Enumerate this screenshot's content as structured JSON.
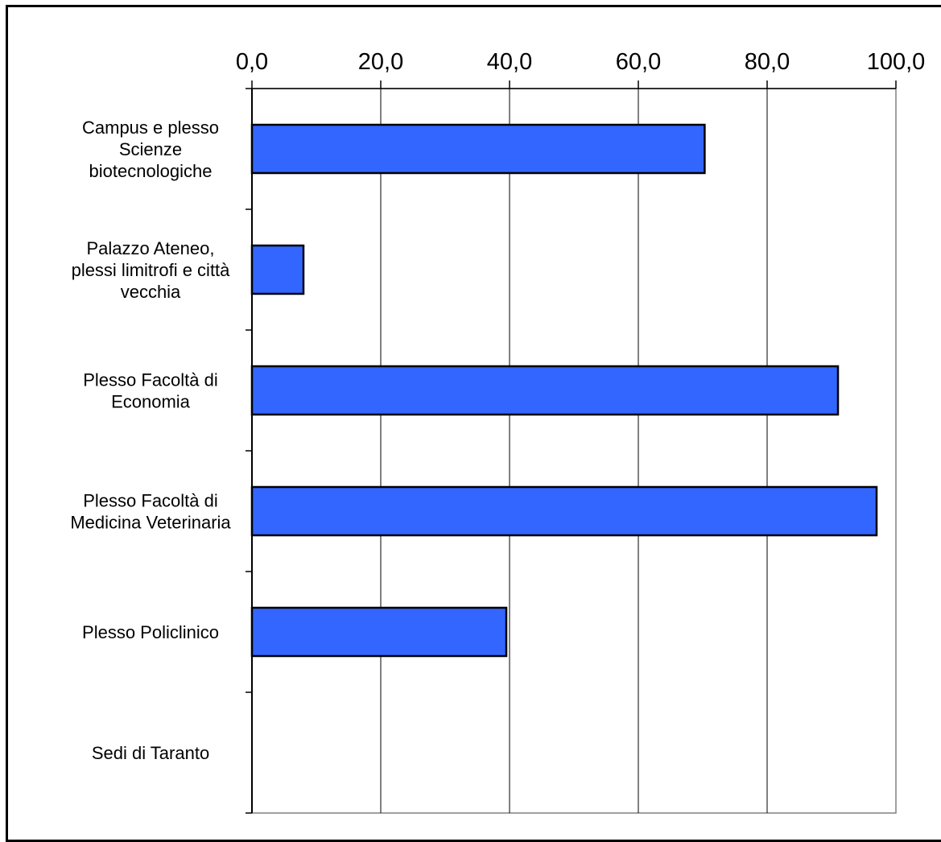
{
  "chart_data": {
    "type": "bar",
    "orientation": "horizontal",
    "categories": [
      "Campus e plesso Scienze biotecnologiche",
      "Palazzo Ateneo, plessi limitrofi e città vecchia",
      "Plesso Facoltà di Economia",
      "Plesso Facoltà di Medicina Veterinaria",
      "Plesso Policlinico",
      "Sedi di Taranto"
    ],
    "category_label_lines": [
      [
        "Campus e plesso",
        "Scienze",
        "biotecnologiche"
      ],
      [
        "Palazzo Ateneo,",
        "plessi limitrofi e città",
        "vecchia"
      ],
      [
        "Plesso Facoltà di",
        "Economia"
      ],
      [
        "Plesso Facoltà di",
        "Medicina Veterinaria"
      ],
      [
        "Plesso Policlinico"
      ],
      [
        "Sedi di Taranto"
      ]
    ],
    "values": [
      70.3,
      8.0,
      91.0,
      97.0,
      39.5,
      0.0
    ],
    "xlim": [
      0,
      100
    ],
    "xticks": [
      "0,0",
      "20,0",
      "40,0",
      "60,0",
      "80,0",
      "100,0"
    ],
    "xaxis_position": "top",
    "grid": true,
    "bar_color": "#3366ff",
    "title": "",
    "xlabel": "",
    "ylabel": ""
  }
}
